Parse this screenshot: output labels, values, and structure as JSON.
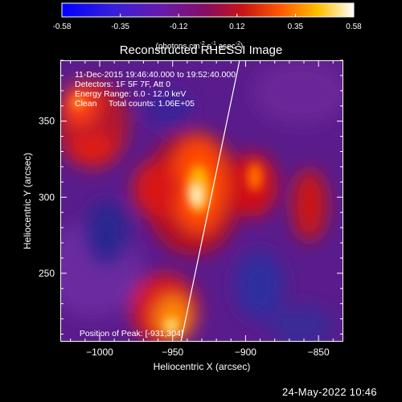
{
  "colorbar": {
    "ticks": [
      "-0.58",
      "-0.35",
      "-0.12",
      "0.12",
      "0.35",
      "0.58"
    ],
    "units_text": "(photons cm",
    "units_sup1": "-2",
    "units_mid1": " s",
    "units_sup2": "-1",
    "units_mid2": " asec",
    "units_sup3": "-2",
    "units_end": ")",
    "range": [
      -0.58,
      0.58
    ]
  },
  "image": {
    "title": "Reconstructed RHESSI Image",
    "info_lines": [
      "11-Dec-2015 19:46:40.000 to 19:52:40.000",
      "Detectors: 1F 5F 7F, Att 0",
      "Energy Range: 6.0 - 12.0 keV",
      "Clean     Total counts: 1.06E+05"
    ],
    "peak_label": "Position of Peak:",
    "peak_value": "[-931,304]",
    "x_axis_label": "Heliocentric X (arcsec)",
    "y_axis_label": "Heliocentric Y (arcsec)",
    "x_ticks": [
      "−1000",
      "−950",
      "−900",
      "−850"
    ],
    "y_ticks": [
      "250",
      "300",
      "350"
    ],
    "x_range": [
      -1027,
      -833
    ],
    "y_range": [
      205,
      390
    ]
  },
  "footer": {
    "timestamp": "24-May-2022 10:46"
  },
  "colors": {
    "background": "#000000",
    "foreground": "#ffffff"
  }
}
